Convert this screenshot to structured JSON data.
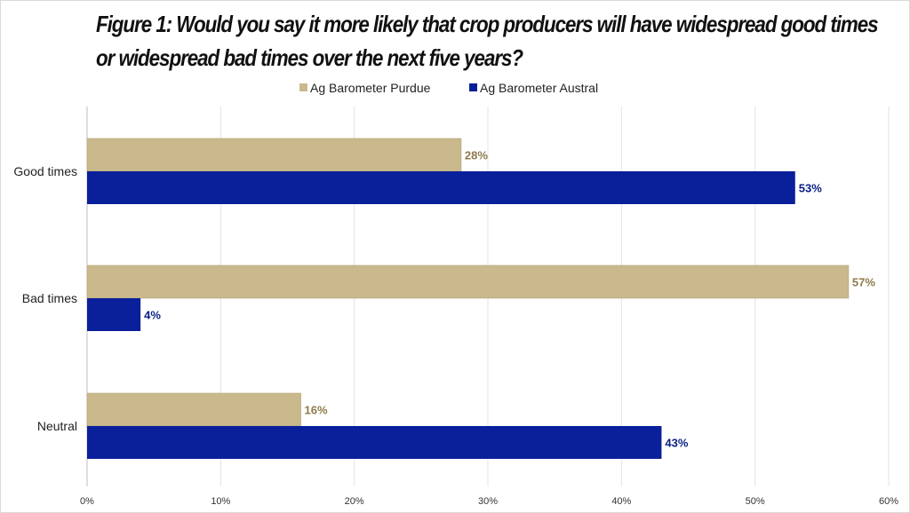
{
  "chart_data": {
    "type": "bar",
    "orientation": "horizontal",
    "title_lines": [
      "Figure 1: Would you say it more likely that crop producers will have widespread good times",
      "or widespread bad times over the next five years?"
    ],
    "categories": [
      "Good times",
      "Bad times",
      "Neutral"
    ],
    "series": [
      {
        "name": "Ag Barometer Purdue",
        "values": [
          28,
          57,
          16
        ],
        "labels": [
          "28%",
          "57%",
          "16%"
        ],
        "color": "#c9b98c",
        "label_color": "#8e7a4a"
      },
      {
        "name": "Ag Barometer Austral",
        "values": [
          53,
          4,
          43
        ],
        "labels": [
          "53%",
          "4%",
          "43%"
        ],
        "color": "#0a1f9a",
        "label_color": "#0a1f82"
      }
    ],
    "xlim": [
      0,
      60
    ],
    "ticks": [
      0,
      10,
      20,
      30,
      40,
      50,
      60
    ],
    "tick_labels": [
      "0%",
      "10%",
      "20%",
      "30%",
      "40%",
      "50%",
      "60%"
    ],
    "grid": true,
    "legend_position": "top"
  }
}
